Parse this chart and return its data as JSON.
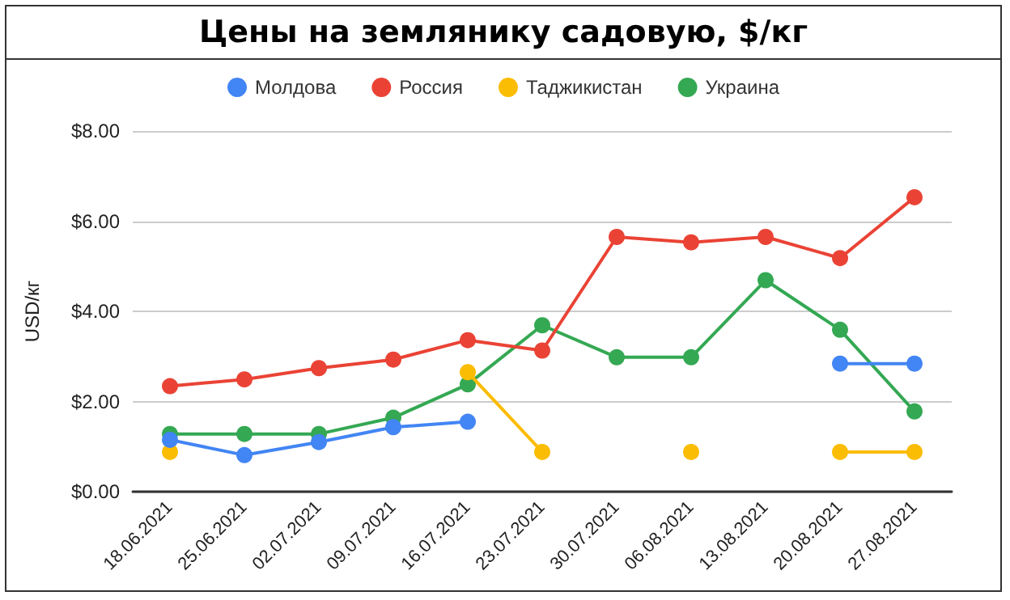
{
  "chart_data": {
    "type": "line",
    "title": "Цены на землянику садовую, $/кг",
    "ylabel": "USD/кг",
    "categories": [
      "18.06.2021",
      "25.06.2021",
      "02.07.2021",
      "09.07.2021",
      "16.07.2021",
      "23.07.2021",
      "30.07.2021",
      "06.08.2021",
      "13.08.2021",
      "20.08.2021",
      "27.08.2021"
    ],
    "series": [
      {
        "name": "Молдова",
        "color": "#4285f4",
        "values": [
          1.15,
          0.81,
          1.1,
          1.43,
          1.55,
          null,
          null,
          null,
          null,
          2.84,
          2.84
        ]
      },
      {
        "name": "Россия",
        "color": "#ea4335",
        "values": [
          2.34,
          2.49,
          2.74,
          2.93,
          3.36,
          3.13,
          5.65,
          5.53,
          5.65,
          5.18,
          6.53
        ]
      },
      {
        "name": "Таджикистан",
        "color": "#fbbc04",
        "values": [
          0.88,
          null,
          null,
          null,
          2.65,
          0.88,
          null,
          0.88,
          null,
          0.88,
          0.88
        ]
      },
      {
        "name": "Украина",
        "color": "#34a853",
        "values": [
          1.28,
          1.28,
          1.28,
          1.64,
          2.38,
          3.69,
          2.98,
          2.98,
          4.69,
          3.59,
          1.78
        ]
      }
    ],
    "ylim": [
      0,
      8
    ],
    "yticks": [
      {
        "value": 0,
        "label": "$0.00"
      },
      {
        "value": 2,
        "label": "$2.00"
      },
      {
        "value": 4,
        "label": "$4.00"
      },
      {
        "value": 6,
        "label": "$6.00"
      },
      {
        "value": 8,
        "label": "$8.00"
      }
    ],
    "grid": "y",
    "legend": "top",
    "marker": "circle",
    "line_style": "solid"
  }
}
